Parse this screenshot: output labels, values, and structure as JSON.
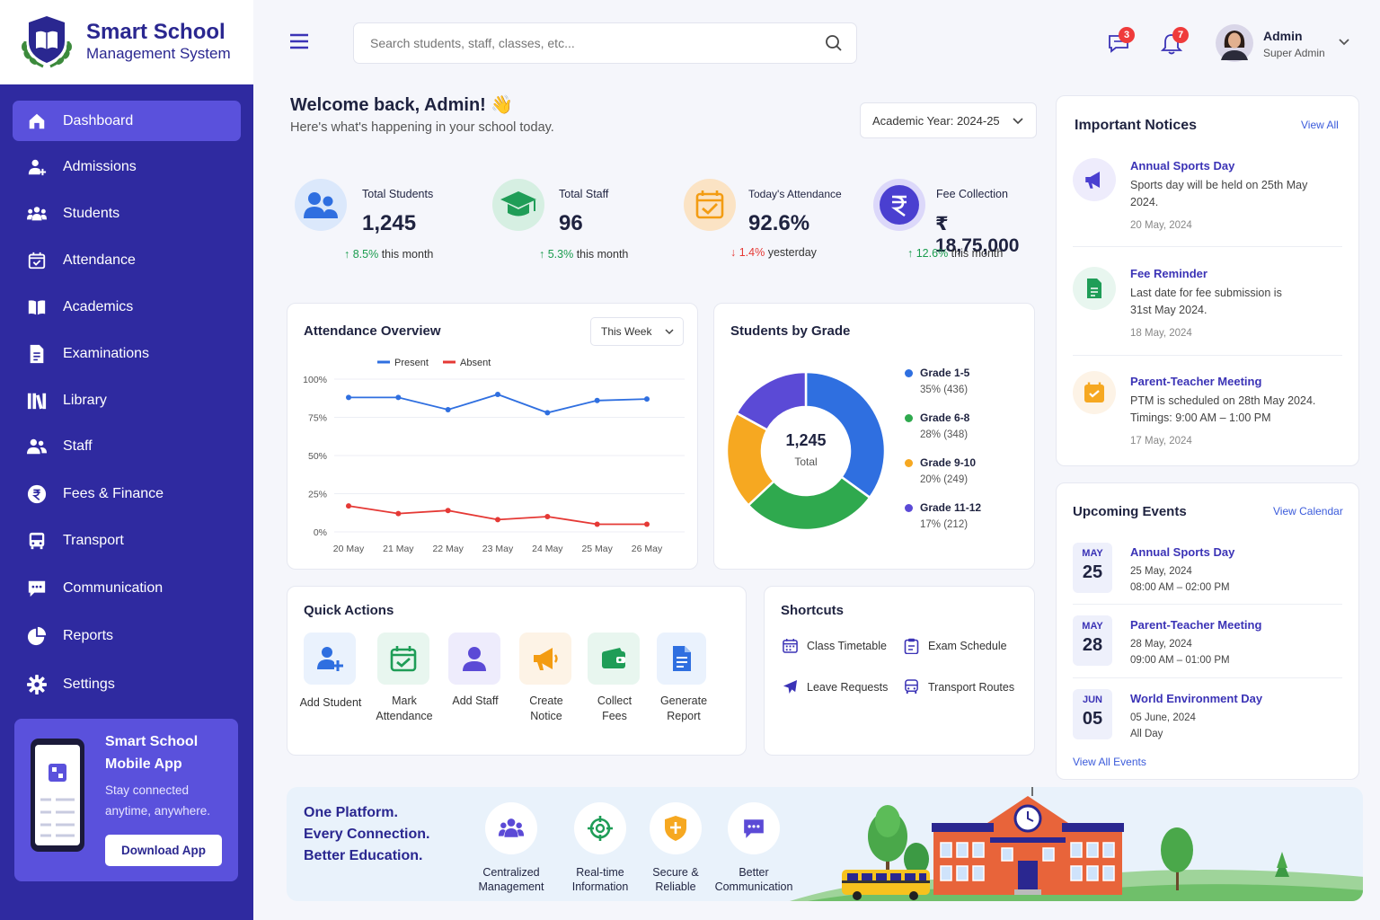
{
  "brand": {
    "title": "Smart School",
    "subtitle": "Management System"
  },
  "sidebar": {
    "items": [
      {
        "label": "Dashboard",
        "icon": "home-icon",
        "active": true
      },
      {
        "label": "Admissions",
        "icon": "add-user-icon"
      },
      {
        "label": "Students",
        "icon": "group-icon"
      },
      {
        "label": "Attendance",
        "icon": "calendar-check-icon"
      },
      {
        "label": "Academics",
        "icon": "book-open-icon"
      },
      {
        "label": "Examinations",
        "icon": "document-icon"
      },
      {
        "label": "Library",
        "icon": "library-books-icon"
      },
      {
        "label": "Staff",
        "icon": "staff-icon"
      },
      {
        "label": "Fees & Finance",
        "icon": "rupee-icon"
      },
      {
        "label": "Transport",
        "icon": "bus-icon"
      },
      {
        "label": "Communication",
        "icon": "chat-icon"
      },
      {
        "label": "Reports",
        "icon": "pie-chart-icon"
      },
      {
        "label": "Settings",
        "icon": "gear-icon"
      }
    ],
    "app_card": {
      "title1": "Smart School",
      "title2": "Mobile App",
      "desc1": "Stay connected",
      "desc2": "anytime, anywhere.",
      "button": "Download App"
    }
  },
  "header": {
    "search_placeholder": "Search students, staff, classes, etc...",
    "messages_count": "3",
    "notifications_count": "7",
    "user_name": "Admin",
    "user_role": "Super Admin"
  },
  "welcome": {
    "title": "Welcome back, Admin! 👋",
    "subtitle": "Here's what's happening in your school today.",
    "academic_year": "Academic Year: 2024-25"
  },
  "stats": [
    {
      "label": "Total Students",
      "value": "1,245",
      "change": "8.5%",
      "change_suffix": " this month",
      "direction": "up",
      "bg": "#eaf2fd",
      "accent": "#2f6fe0"
    },
    {
      "label": "Total Staff",
      "value": "96",
      "change": "5.3%",
      "change_suffix": " this month",
      "direction": "up",
      "bg": "#e8f6ef",
      "accent": "#1f9d57"
    },
    {
      "label": "Today's Attendance",
      "value": "92.6%",
      "change": "1.4%",
      "change_suffix": " yesterday",
      "direction": "down",
      "bg": "#fdf3e6",
      "accent": "#f5a623"
    },
    {
      "label": "Fee Collection",
      "value": "₹ 18,75,000",
      "change": "12.6%",
      "change_suffix": " this month",
      "direction": "up",
      "bg": "#eeecfc",
      "accent": "#4a3fd0"
    }
  ],
  "attendance": {
    "title": "Attendance Overview",
    "range": "This Week",
    "chart_data": {
      "type": "line",
      "x": [
        "20 May",
        "21 May",
        "22 May",
        "23 May",
        "24 May",
        "25 May",
        "26 May"
      ],
      "series": [
        {
          "name": "Present",
          "color": "#2f6fe0",
          "values": [
            88,
            88,
            80,
            90,
            78,
            86,
            87
          ]
        },
        {
          "name": "Absent",
          "color": "#e53935",
          "values": [
            17,
            12,
            14,
            8,
            10,
            5,
            5
          ]
        }
      ],
      "yticks": [
        "100%",
        "75%",
        "50%",
        "25%",
        "0%"
      ],
      "ylim": [
        0,
        100
      ]
    }
  },
  "grades": {
    "title": "Students by Grade",
    "total": "1,245",
    "total_label": "Total",
    "chart_data": {
      "type": "pie",
      "labels": [
        "Grade 1-5",
        "Grade 6-8",
        "Grade 9-10",
        "Grade 11-12"
      ],
      "values": [
        436,
        348,
        249,
        212
      ],
      "percent_labels": [
        "35% (436)",
        "28% (348)",
        "20% (249)",
        "17% (212)"
      ],
      "colors": [
        "#2f6fe0",
        "#2fa94e",
        "#f6a821",
        "#5b4ad6"
      ]
    }
  },
  "quick_actions": {
    "title": "Quick Actions",
    "items": [
      {
        "line1": "Add Student",
        "line2": "",
        "bg": "#eaf2fd",
        "icon": "add-student-icon"
      },
      {
        "line1": "Mark",
        "line2": "Attendance",
        "bg": "#e8f6ef",
        "icon": "calendar-check-icon"
      },
      {
        "line1": "Add Staff",
        "line2": "",
        "bg": "#eeecfc",
        "icon": "add-staff-icon"
      },
      {
        "line1": "Create",
        "line2": "Notice",
        "bg": "#fdf3e6",
        "icon": "megaphone-icon"
      },
      {
        "line1": "Collect",
        "line2": "Fees",
        "bg": "#e8f6ef",
        "icon": "wallet-icon"
      },
      {
        "line1": "Generate",
        "line2": "Report",
        "bg": "#eaf2fd",
        "icon": "report-icon"
      }
    ]
  },
  "shortcuts": {
    "title": "Shortcuts",
    "items": [
      "Class Timetable",
      "Exam Schedule",
      "Leave Requests",
      "Transport Routes"
    ]
  },
  "notices": {
    "title": "Important Notices",
    "view_all": "View All",
    "items": [
      {
        "title": "Annual Sports Day",
        "line1": "Sports day will be held on 25th May",
        "line2": "2024.",
        "date": "20 May, 2024"
      },
      {
        "title": "Fee Reminder",
        "line1": "Last date for fee submission is",
        "line2": "31st May 2024.",
        "date": "18 May, 2024"
      },
      {
        "title": "Parent-Teacher Meeting",
        "line1": "PTM is scheduled on 28th May 2024.",
        "line2": "Timings: 9:00 AM – 1:00 PM",
        "date": "17 May, 2024"
      }
    ]
  },
  "events": {
    "title": "Upcoming Events",
    "view_calendar": "View Calendar",
    "view_all": "View All Events",
    "items": [
      {
        "month": "MAY",
        "day": "25",
        "title": "Annual Sports Day",
        "date": "25 May, 2024",
        "time": "08:00 AM – 02:00 PM"
      },
      {
        "month": "MAY",
        "day": "28",
        "title": "Parent-Teacher Meeting",
        "date": "28 May, 2024",
        "time": "09:00 AM – 01:00 PM"
      },
      {
        "month": "JUN",
        "day": "05",
        "title": "World Environment Day",
        "date": "05 June, 2024",
        "time": "All Day"
      }
    ]
  },
  "banner": {
    "line1": "One Platform.",
    "line2": "Every Connection.",
    "line3": "Better Education.",
    "features": [
      {
        "line1": "Centralized",
        "line2": "Management"
      },
      {
        "line1": "Real-time",
        "line2": "Information"
      },
      {
        "line1": "Secure &",
        "line2": "Reliable"
      },
      {
        "line1": "Better",
        "line2": "Communication"
      }
    ]
  }
}
